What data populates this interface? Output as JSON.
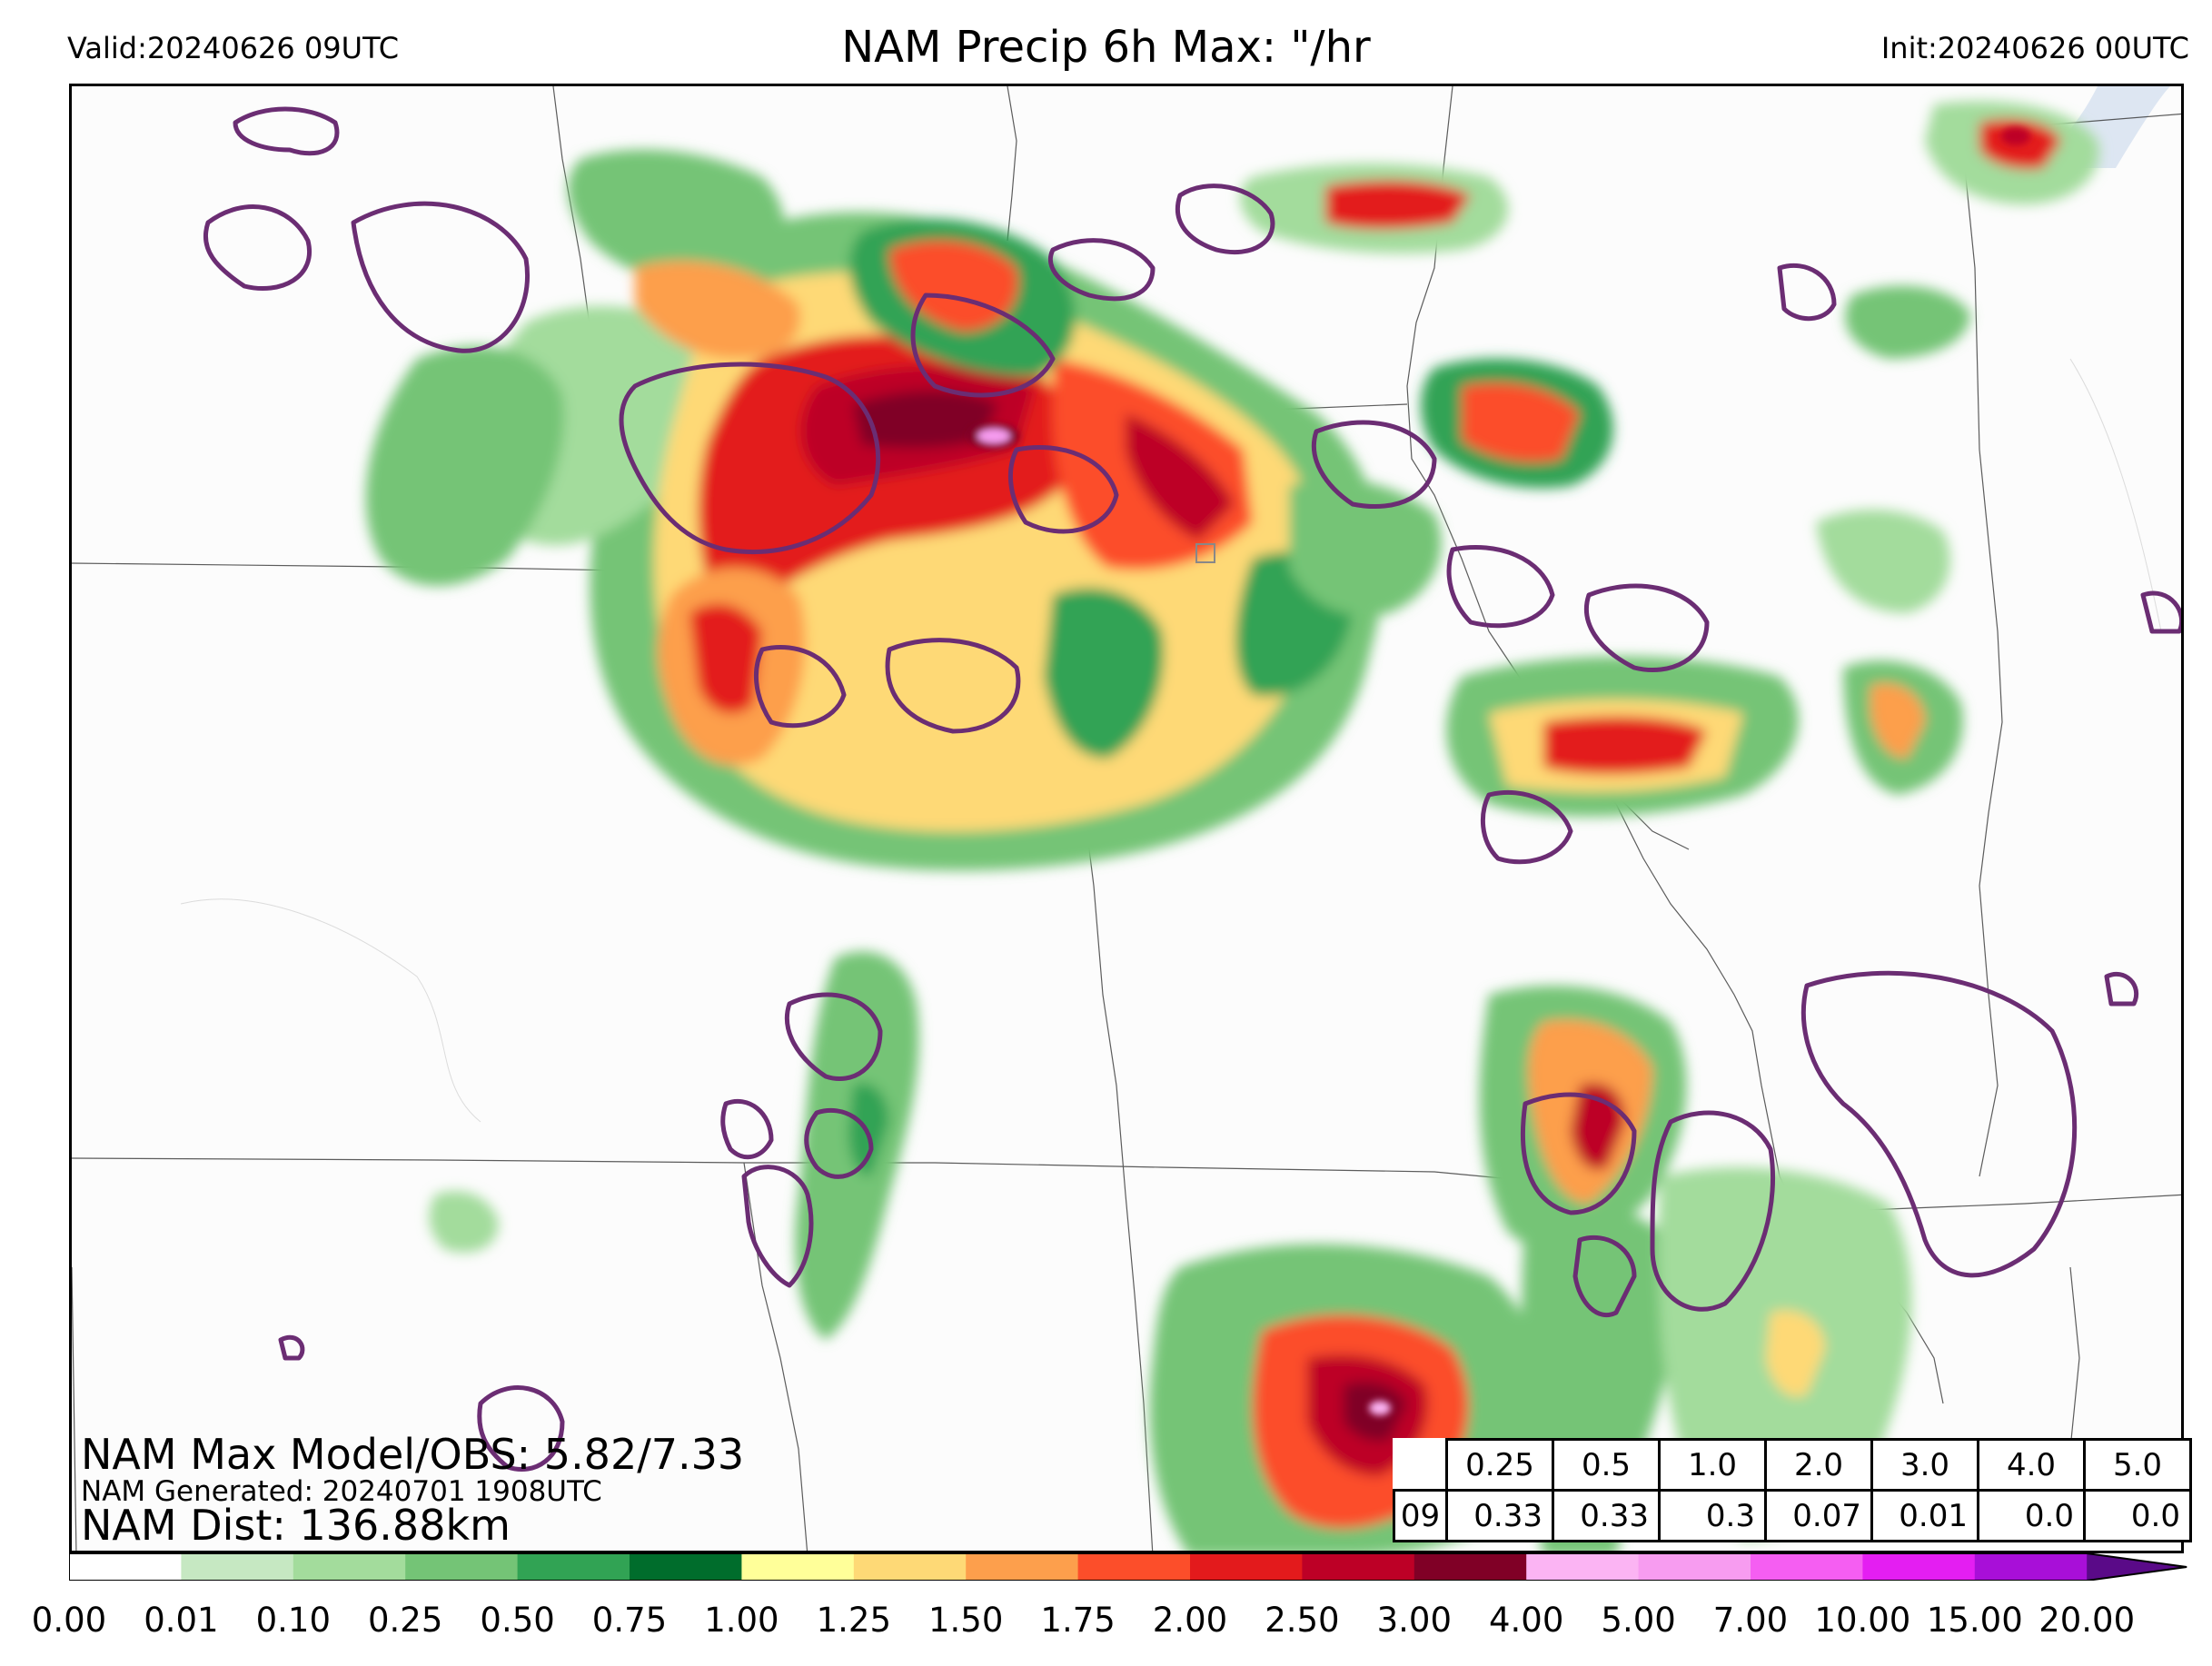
{
  "header": {
    "valid": "Valid:20240626 09UTC",
    "title": "NAM Precip 6h Max: \"/hr",
    "init": "Init:20240626 00UTC"
  },
  "stats": {
    "max_model_obs": "NAM Max Model/OBS: 5.82/7.33",
    "generated": "NAM Generated: 20240701 1908UTC",
    "dist": "NAM Dist: 136.88km"
  },
  "threshold_table": {
    "thresholds": [
      "0.25",
      "0.5",
      "1.0",
      "2.0",
      "3.0",
      "4.0",
      "5.0"
    ],
    "hour": "09",
    "values": [
      "0.33",
      "0.33",
      "0.3",
      "0.07",
      "0.01",
      "0.0",
      "0.0"
    ]
  },
  "colorbar": {
    "labels": [
      "0.00",
      "0.01",
      "0.10",
      "0.25",
      "0.50",
      "0.75",
      "1.00",
      "1.25",
      "1.50",
      "1.75",
      "2.00",
      "2.50",
      "3.00",
      "4.00",
      "5.00",
      "7.00",
      "10.00",
      "15.00",
      "20.00"
    ],
    "colors": [
      "#ffffff",
      "#c6e8c2",
      "#a3dc9c",
      "#74c476",
      "#31a354",
      "#006d2c",
      "#ffff99",
      "#fed976",
      "#fd9f4c",
      "#fc4e2a",
      "#e31a1c",
      "#bd0026",
      "#800026",
      "#fbb4f3",
      "#f79cf0",
      "#f55ef2",
      "#e41ef2",
      "#a80fd8",
      "#7a0ba8"
    ],
    "extend_color": "#5a0a88"
  },
  "map": {
    "obs_contour_color": "#6b2d73",
    "land_color": "#fcfcfc",
    "water_color": "#dde6f2"
  }
}
